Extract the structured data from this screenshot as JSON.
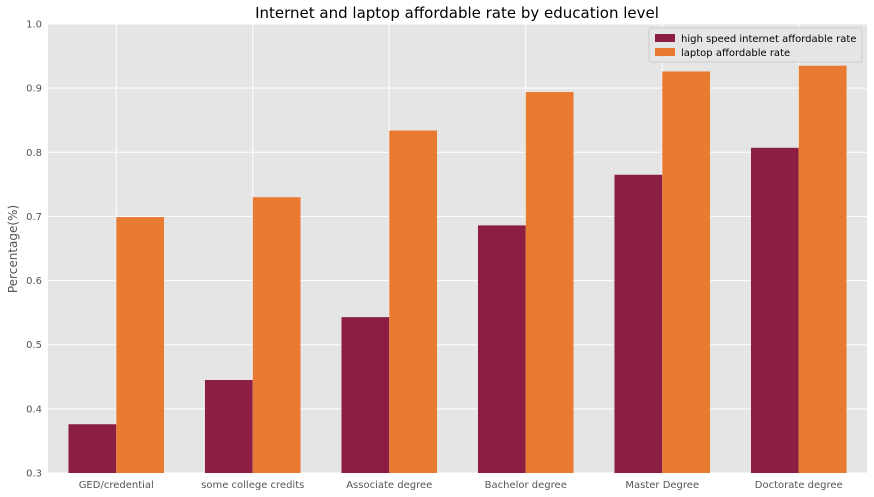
{
  "chart_data": {
    "type": "bar",
    "title": "Internet and laptop affordable rate by education level",
    "xlabel": "",
    "ylabel": "Percentage(%)",
    "ylim": [
      0.3,
      1.0
    ],
    "yticks": [
      "0.3",
      "0.4",
      "0.5",
      "0.6",
      "0.7",
      "0.8",
      "0.9",
      "1.0"
    ],
    "grid": true,
    "legend_position": "top-right",
    "categories": [
      "GED/credential",
      "some college credits",
      "Associate degree",
      "Bachelor degree",
      "Master Degree",
      "Doctorate degree"
    ],
    "series": [
      {
        "name": "high speed internet affordable rate",
        "color": "#8b1e42",
        "values": [
          0.376,
          0.445,
          0.543,
          0.686,
          0.765,
          0.807
        ]
      },
      {
        "name": "laptop affordable rate",
        "color": "#e87a31",
        "values": [
          0.699,
          0.73,
          0.834,
          0.894,
          0.926,
          0.935
        ]
      }
    ],
    "colors": {
      "plot_background": "#e5e5e5",
      "grid": "#ffffff"
    }
  }
}
